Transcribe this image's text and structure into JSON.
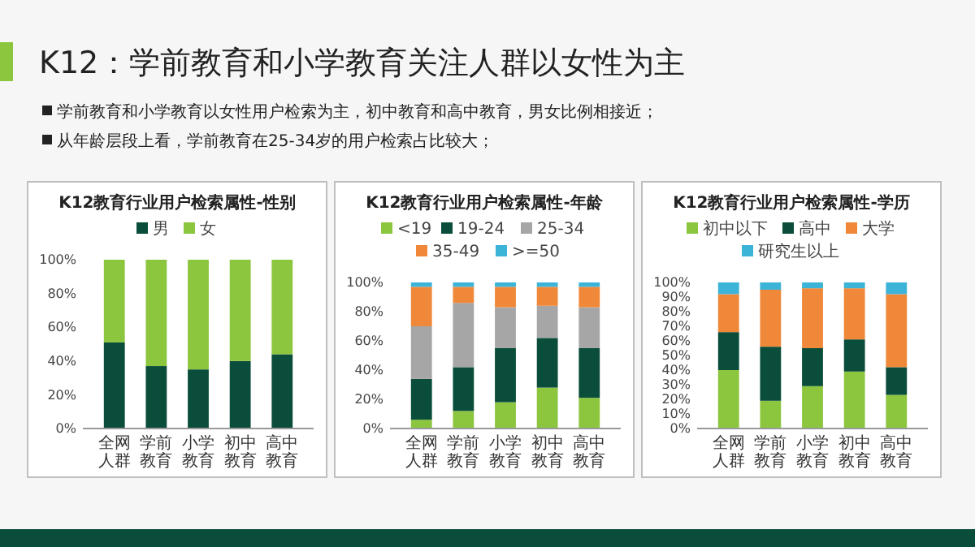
{
  "chart_data": [
    {
      "type": "other",
      "title": "K12：学前教育和小学教育关注人群以女性为主",
      "annotations": [
        "学前教育和小学教育以女性用户检索为主，初中教育和高中教育，男女比例相接近；",
        "从年龄层段上看，学前教育在25-34岁的用户检索占比较大；"
      ]
    },
    {
      "type": "bar",
      "stacked": true,
      "title": "K12教育行业用户检索属性-性别",
      "categories": [
        "全网人群",
        "学前教育",
        "小学教育",
        "初中教育",
        "高中教育"
      ],
      "legend": "top",
      "ylim": [
        0,
        100
      ],
      "yticks": [
        {
          "value": 0,
          "label": "0%"
        },
        {
          "value": 20,
          "label": "20%"
        },
        {
          "value": 40,
          "label": "40%"
        },
        {
          "value": 60,
          "label": "60%"
        },
        {
          "value": 80,
          "label": "80%"
        },
        {
          "value": 100,
          "label": "100%"
        }
      ],
      "series": [
        {
          "name": "男",
          "color": "#0b4d3b",
          "values": [
            51,
            37,
            35,
            40,
            44
          ]
        },
        {
          "name": "女",
          "color": "#8cc63f",
          "values": [
            49,
            63,
            65,
            60,
            56
          ]
        }
      ]
    },
    {
      "type": "bar",
      "stacked": true,
      "title": "K12教育行业用户检索属性-年龄",
      "categories": [
        "全网人群",
        "学前教育",
        "小学教育",
        "初中教育",
        "高中教育"
      ],
      "legend": "top",
      "ylim": [
        0,
        100
      ],
      "yticks": [
        {
          "value": 0,
          "label": "0%"
        },
        {
          "value": 20,
          "label": "20%"
        },
        {
          "value": 40,
          "label": "40%"
        },
        {
          "value": 60,
          "label": "60%"
        },
        {
          "value": 80,
          "label": "80%"
        },
        {
          "value": 100,
          "label": "100%"
        }
      ],
      "series": [
        {
          "name": "<19",
          "color": "#8cc63f",
          "values": [
            6,
            12,
            18,
            28,
            21
          ]
        },
        {
          "name": "19-24",
          "color": "#0b4d3b",
          "values": [
            28,
            30,
            37,
            34,
            34
          ]
        },
        {
          "name": "25-34",
          "color": "#a6a6a6",
          "values": [
            36,
            44,
            28,
            22,
            28
          ]
        },
        {
          "name": "35-49",
          "color": "#f0883a",
          "values": [
            27,
            11,
            14,
            13,
            14
          ]
        },
        {
          "name": ">=50",
          "color": "#3cb4d8",
          "values": [
            3,
            3,
            3,
            3,
            3
          ]
        }
      ]
    },
    {
      "type": "bar",
      "stacked": true,
      "title": "K12教育行业用户检索属性-学历",
      "categories": [
        "全网人群",
        "学前教育",
        "小学教育",
        "初中教育",
        "高中教育"
      ],
      "legend": "top",
      "ylim": [
        0,
        100
      ],
      "yticks": [
        {
          "value": 0,
          "label": "0%"
        },
        {
          "value": 10,
          "label": "10%"
        },
        {
          "value": 20,
          "label": "20%"
        },
        {
          "value": 30,
          "label": "30%"
        },
        {
          "value": 40,
          "label": "40%"
        },
        {
          "value": 50,
          "label": "50%"
        },
        {
          "value": 60,
          "label": "60%"
        },
        {
          "value": 70,
          "label": "70%"
        },
        {
          "value": 80,
          "label": "80%"
        },
        {
          "value": 90,
          "label": "90%"
        },
        {
          "value": 100,
          "label": "100%"
        }
      ],
      "series": [
        {
          "name": "初中以下",
          "color": "#8cc63f",
          "values": [
            40,
            19,
            29,
            39,
            23
          ]
        },
        {
          "name": "高中",
          "color": "#0b4d3b",
          "values": [
            26,
            37,
            26,
            22,
            19
          ]
        },
        {
          "name": "大学",
          "color": "#f0883a",
          "values": [
            26,
            39,
            41,
            35,
            50
          ]
        },
        {
          "name": "研究生以上",
          "color": "#3cb4d8",
          "values": [
            8,
            5,
            4,
            4,
            8
          ]
        }
      ]
    }
  ]
}
